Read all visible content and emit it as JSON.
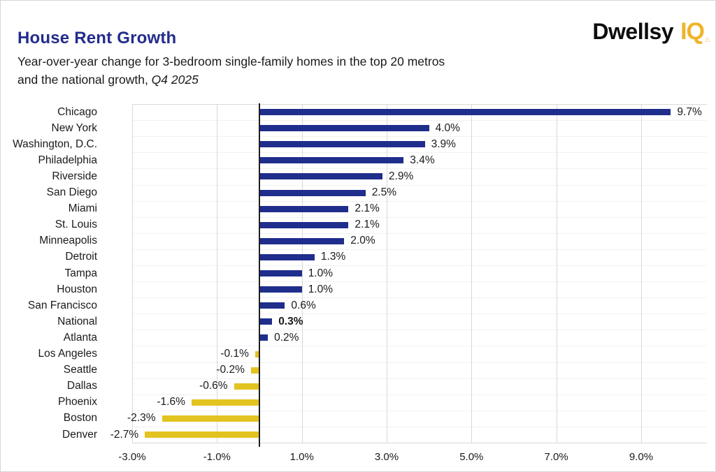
{
  "header": {
    "title": "House Rent Growth",
    "subtitle_line1": "Year-over-year change for 3-bedroom single-family homes in the top 20 metros",
    "subtitle_line2_normal": "and the national growth, ",
    "subtitle_line2_italic": "Q4 2025"
  },
  "logo": {
    "black": "Dwellsy",
    "gold": "IQ"
  },
  "chart_data": {
    "type": "bar",
    "orientation": "horizontal",
    "title": "House Rent Growth",
    "categories": [
      "Chicago",
      "New York",
      "Washington, D.C.",
      "Philadelphia",
      "Riverside",
      "San Diego",
      "Miami",
      "St. Louis",
      "Minneapolis",
      "Detroit",
      "Tampa",
      "Houston",
      "San Francisco",
      "National",
      "Atlanta",
      "Los Angeles",
      "Seattle",
      "Dallas",
      "Phoenix",
      "Boston",
      "Denver"
    ],
    "values": [
      9.7,
      4.0,
      3.9,
      3.4,
      2.9,
      2.5,
      2.1,
      2.1,
      2.0,
      1.3,
      1.0,
      1.0,
      0.6,
      0.3,
      0.2,
      -0.1,
      -0.2,
      -0.6,
      -1.6,
      -2.3,
      -2.7
    ],
    "value_labels": [
      "9.7%",
      "4.0%",
      "3.9%",
      "3.4%",
      "2.9%",
      "2.5%",
      "2.1%",
      "2.1%",
      "2.0%",
      "1.3%",
      "1.0%",
      "1.0%",
      "0.6%",
      "0.3%",
      "0.2%",
      "-0.1%",
      "-0.2%",
      "-0.6%",
      "-1.6%",
      "-2.3%",
      "-2.7%"
    ],
    "emphasized_category": "National",
    "positive_color": "#1f2d8c",
    "negative_color": "#e3c31f",
    "xlim": [
      -3.0,
      10.55
    ],
    "x_ticks": [
      {
        "value": -3,
        "label": "-3.0%"
      },
      {
        "value": -1,
        "label": "-1.0%"
      },
      {
        "value": 1,
        "label": "1.0%"
      },
      {
        "value": 3,
        "label": "3.0%"
      },
      {
        "value": 5,
        "label": "5.0%"
      },
      {
        "value": 7,
        "label": "7.0%"
      },
      {
        "value": 9,
        "label": "9.0%"
      }
    ],
    "grid": true,
    "legend": "none"
  }
}
